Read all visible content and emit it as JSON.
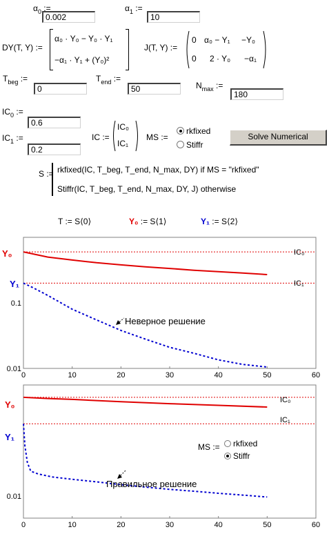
{
  "params": {
    "alpha0_label": "α",
    "alpha0_sub": "0",
    "alpha0_value": "0.002",
    "alpha1_label": "α",
    "alpha1_sub": "1",
    "alpha1_value": "10",
    "assign": ":="
  },
  "dy_def": {
    "name": "DY(T, Y) :=",
    "row1": "α₀ · Y₀ − Y₀ · Y₁",
    "row2": "−α₁ · Y₁ + (Y₀)²"
  },
  "j_def": {
    "name": "J(T, Y) :=",
    "r1c1": "0",
    "r1c2": "α₀ − Y₁",
    "r1c3": "−Y₀",
    "r2c1": "0",
    "r2c2": "2 · Y₀",
    "r2c3": "−α₁"
  },
  "range": {
    "tbeg_label": "T",
    "tbeg_sub": "beg",
    "tbeg_value": "0",
    "tend_label": "T",
    "tend_sub": "end",
    "tend_value": "50",
    "nmax_label": "N",
    "nmax_sub": "max",
    "nmax_value": "180"
  },
  "ic": {
    "ic0_label": "IC",
    "ic0_sub": "0",
    "ic0_value": "0.6",
    "ic1_label": "IC",
    "ic1_sub": "1",
    "ic1_value": "0.2",
    "vec_name": "IC :=",
    "vec_r1": "IC₀",
    "vec_r2": "IC₁"
  },
  "ms_control": {
    "label": "MS :=",
    "options": [
      "rkfixed",
      "Stiffr"
    ],
    "selected": "rkfixed"
  },
  "solve_button": "Solve Numerical",
  "s_def": {
    "name": "S :=",
    "line1": "rkfixed(IC, T_beg, T_end, N_max, DY)   if   MS = \"rkfixed\"",
    "line2": "Stiffr(IC, T_beg, T_end, N_max, DY, J)   otherwise"
  },
  "extract": {
    "t": "T := S⟨0⟩",
    "y0_label": "Y₀",
    "y0_rest": " := S⟨1⟩",
    "y1_label": "Y₁",
    "y1_rest": " := S⟨2⟩"
  },
  "colors": {
    "y0": "#e00000",
    "y1": "#0000d0",
    "ref": "#e00000"
  },
  "chart_data": [
    {
      "type": "line",
      "log_y": true,
      "xlim": [
        0,
        60
      ],
      "ylim": [
        0.01,
        1
      ],
      "x_ticks": [
        0,
        10,
        20,
        30,
        40,
        50,
        60
      ],
      "y_tick_labels": [
        "0.1",
        "0.01"
      ],
      "y_tick_values": [
        0.1,
        0.01
      ],
      "series": [
        {
          "name": "Y₀",
          "style": "solid",
          "color": "#e00000",
          "x": [
            0,
            5,
            10,
            15,
            20,
            25,
            30,
            35,
            40,
            45,
            50
          ],
          "y": [
            0.6,
            0.5,
            0.45,
            0.41,
            0.38,
            0.355,
            0.335,
            0.315,
            0.3,
            0.285,
            0.27
          ]
        },
        {
          "name": "Y₁",
          "style": "dashed",
          "color": "#0000d0",
          "x": [
            0,
            2,
            5,
            10,
            15,
            20,
            25,
            30,
            35,
            40,
            45,
            50
          ],
          "y": [
            0.2,
            0.17,
            0.13,
            0.08,
            0.055,
            0.038,
            0.028,
            0.021,
            0.017,
            0.0135,
            0.0115,
            0.0105
          ]
        }
      ],
      "ref_lines": [
        {
          "label": "IC₀",
          "y": 0.6
        },
        {
          "label": "IC₁",
          "y": 0.2
        }
      ],
      "annotation": "Неверное решение"
    },
    {
      "type": "line",
      "log_y": true,
      "xlim": [
        0,
        60
      ],
      "ylim": [
        0.004,
        1
      ],
      "x_ticks": [
        0,
        10,
        20,
        30,
        40,
        50,
        60
      ],
      "y_tick_labels": [
        "0.01"
      ],
      "y_tick_values": [
        0.01
      ],
      "series": [
        {
          "name": "Y₀",
          "style": "solid",
          "color": "#e00000",
          "x": [
            0,
            5,
            10,
            20,
            30,
            40,
            50
          ],
          "y": [
            0.6,
            0.57,
            0.55,
            0.5,
            0.46,
            0.43,
            0.4
          ]
        },
        {
          "name": "Y₁",
          "style": "dashed",
          "color": "#0000d0",
          "x": [
            0,
            0.3,
            0.8,
            1.5,
            3,
            6,
            10,
            15,
            20,
            25,
            30,
            35,
            40,
            45,
            50
          ],
          "y": [
            0.2,
            0.08,
            0.04,
            0.028,
            0.025,
            0.022,
            0.02,
            0.018,
            0.016,
            0.0145,
            0.0132,
            0.0122,
            0.0112,
            0.0104,
            0.0096
          ]
        }
      ],
      "ref_lines": [
        {
          "label": "IC₀",
          "y": 0.6
        },
        {
          "label": "IC₁",
          "y": 0.2
        }
      ],
      "annotation": "Правильное решение",
      "ms_control": {
        "label": "MS :=",
        "options": [
          "rkfixed",
          "Stiffr"
        ],
        "selected": "Stiffr"
      }
    }
  ]
}
